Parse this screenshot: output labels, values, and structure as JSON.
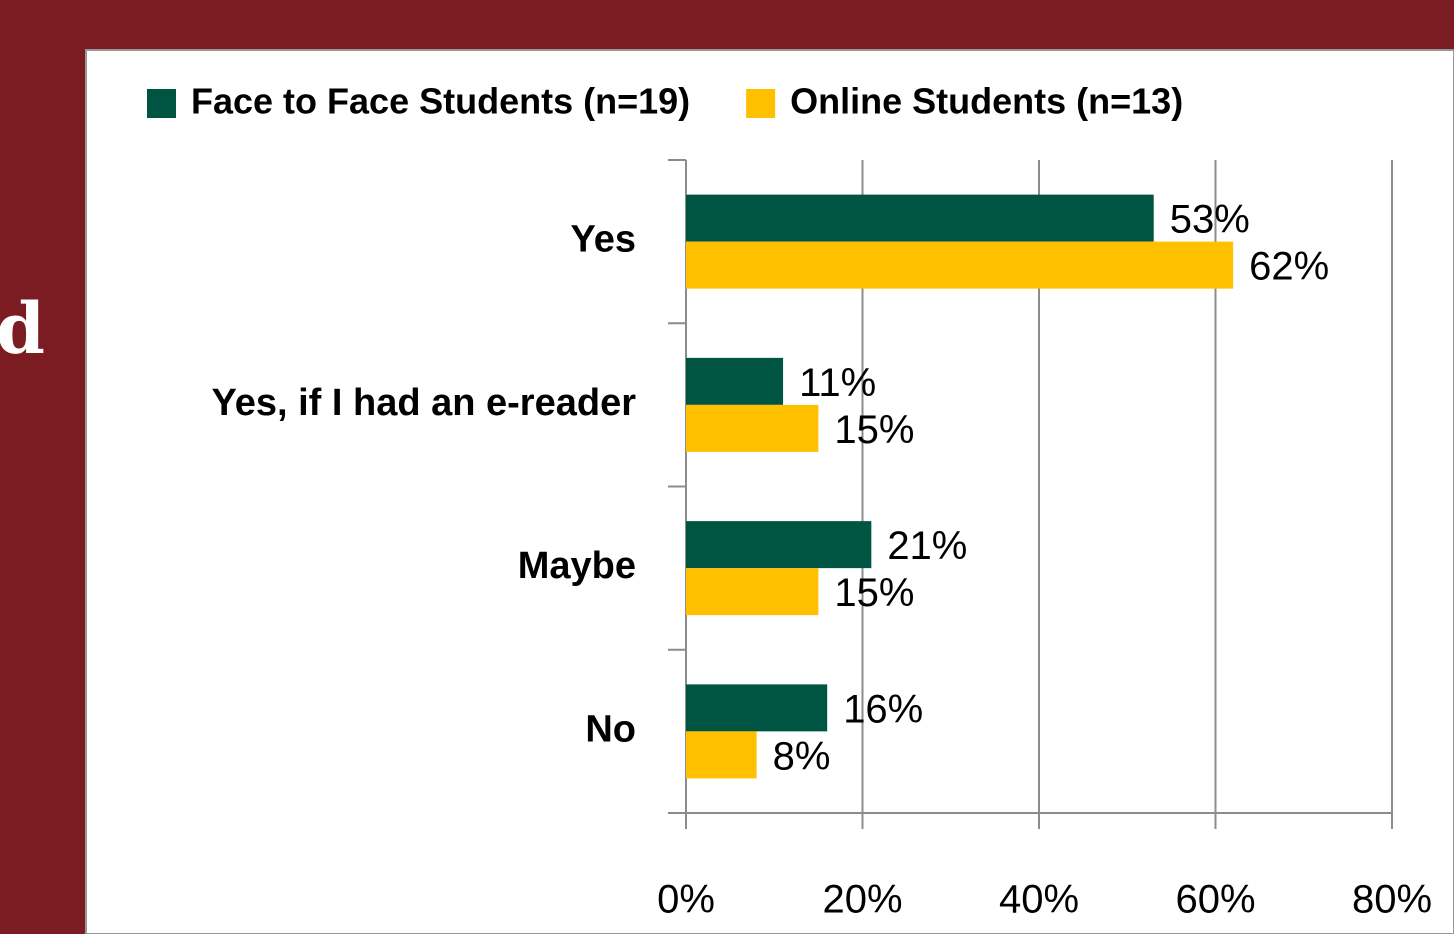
{
  "background_text": "d",
  "chart_data": {
    "type": "barh",
    "categories": [
      "Yes",
      "Yes, if I had an e-reader",
      "Maybe",
      "No"
    ],
    "series": [
      {
        "name": "Face to Face Students (n=19)",
        "color": "#005542",
        "values": [
          53,
          11,
          21,
          16
        ],
        "value_labels": [
          "53%",
          "11%",
          "21%",
          "16%"
        ]
      },
      {
        "name": "Online Students (n=13)",
        "color": "#ffc000",
        "values": [
          62,
          15,
          15,
          8
        ],
        "value_labels": [
          "62%",
          "15%",
          "15%",
          "8%"
        ]
      }
    ],
    "xlim": [
      0,
      80
    ],
    "xticks": [
      {
        "value": 0,
        "label": "0%"
      },
      {
        "value": 20,
        "label": "20%"
      },
      {
        "value": 40,
        "label": "40%"
      },
      {
        "value": 60,
        "label": "60%"
      },
      {
        "value": 80,
        "label": "80%"
      }
    ],
    "grid": true,
    "legend": "top"
  }
}
